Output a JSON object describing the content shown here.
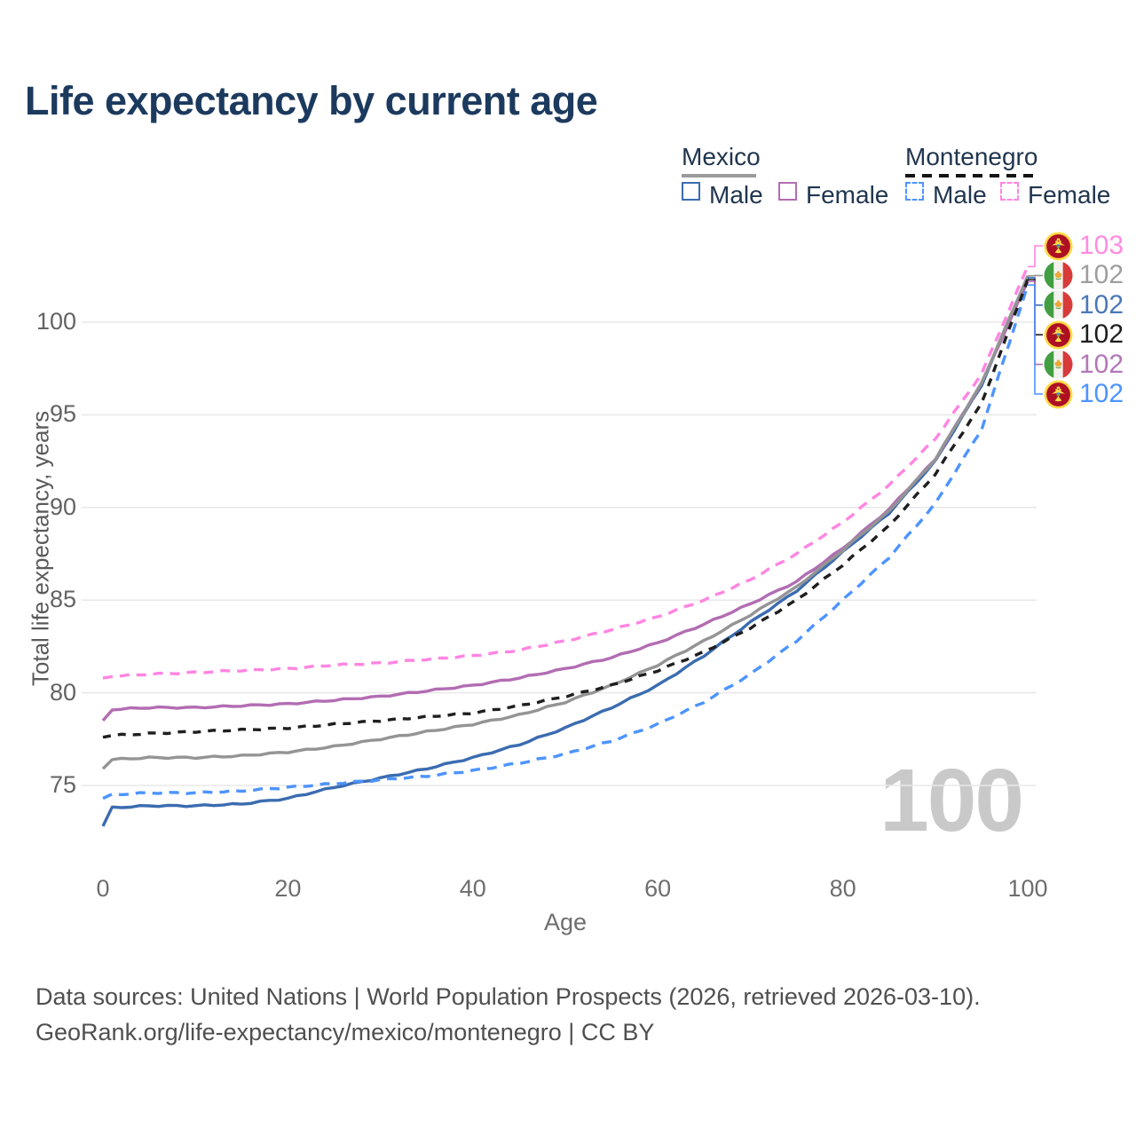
{
  "title": "Life expectancy by current age",
  "legend": {
    "groups": [
      {
        "country": "Mexico",
        "line_style": "solid",
        "underline_color": "#9b9b9b",
        "items": [
          {
            "label": "Male",
            "color": "#3b6cb0",
            "dashed": false
          },
          {
            "label": "Female",
            "color": "#b26db2",
            "dashed": false
          }
        ]
      },
      {
        "country": "Montenegro",
        "line_style": "dashed",
        "underline_color": "#141414",
        "items": [
          {
            "label": "Male",
            "color": "#4d94ff",
            "dashed": true
          },
          {
            "label": "Female",
            "color": "#ff85e2",
            "dashed": true
          }
        ]
      }
    ]
  },
  "chart_data": {
    "type": "line",
    "title": "Life expectancy by current age",
    "xlabel": "Age",
    "ylabel": "Total life expectancy, years",
    "xticks": [
      0,
      20,
      40,
      60,
      80,
      100
    ],
    "yticks": [
      75,
      80,
      85,
      90,
      95,
      100
    ],
    "xlim": [
      0,
      100
    ],
    "ylim": [
      71.5,
      104.5
    ],
    "grid": "horizontal",
    "legend_position": "top-right",
    "x": [
      0,
      1,
      5,
      10,
      15,
      20,
      25,
      30,
      35,
      40,
      45,
      50,
      55,
      60,
      65,
      70,
      75,
      80,
      85,
      90,
      95,
      100
    ],
    "series": [
      {
        "name": "Mexico Male",
        "color": "#3b6cb0",
        "dashed": false,
        "values": [
          72.8,
          73.8,
          73.9,
          73.9,
          74.0,
          74.3,
          74.9,
          75.4,
          75.9,
          76.5,
          77.2,
          78.1,
          79.2,
          80.4,
          82.0,
          83.8,
          85.5,
          87.6,
          89.7,
          92.5,
          96.6,
          102.4
        ]
      },
      {
        "name": "Mexico Female",
        "color": "#b26db2",
        "dashed": false,
        "values": [
          78.5,
          79.1,
          79.2,
          79.2,
          79.3,
          79.4,
          79.6,
          79.8,
          80.1,
          80.4,
          80.8,
          81.3,
          81.9,
          82.7,
          83.7,
          84.8,
          86.0,
          87.8,
          89.9,
          92.6,
          96.7,
          102.2
        ]
      },
      {
        "name": "Mexico Both sexes",
        "color": "#949494",
        "dashed": false,
        "values": [
          75.9,
          76.4,
          76.5,
          76.5,
          76.6,
          76.8,
          77.1,
          77.5,
          77.9,
          78.3,
          78.8,
          79.5,
          80.4,
          81.5,
          82.8,
          84.2,
          85.7,
          87.7,
          89.8,
          92.6,
          96.7,
          102.5
        ]
      },
      {
        "name": "Montenegro Male",
        "color": "#4d94ff",
        "dashed": true,
        "values": [
          74.3,
          74.5,
          74.6,
          74.6,
          74.7,
          74.9,
          75.1,
          75.3,
          75.5,
          75.8,
          76.2,
          76.7,
          77.4,
          78.3,
          79.5,
          81.0,
          82.8,
          85.0,
          87.3,
          90.2,
          94.2,
          102.0
        ]
      },
      {
        "name": "Montenegro Female",
        "color": "#ff85e2",
        "dashed": true,
        "values": [
          80.8,
          80.9,
          81.0,
          81.1,
          81.2,
          81.3,
          81.5,
          81.6,
          81.8,
          82.0,
          82.3,
          82.8,
          83.4,
          84.1,
          85.0,
          86.1,
          87.5,
          89.2,
          91.2,
          93.7,
          97.2,
          103.0
        ]
      },
      {
        "name": "Montenegro Both sexes",
        "color": "#1f1f1f",
        "dashed": true,
        "values": [
          77.6,
          77.7,
          77.8,
          77.9,
          78.0,
          78.1,
          78.3,
          78.5,
          78.7,
          78.9,
          79.3,
          79.8,
          80.4,
          81.2,
          82.2,
          83.5,
          85.0,
          86.9,
          89.0,
          91.8,
          95.6,
          102.3
        ]
      }
    ]
  },
  "end_labels": [
    {
      "value": "103",
      "flag": "montenegro",
      "color": "#ff8ce0",
      "series": "Montenegro Female"
    },
    {
      "value": "102",
      "flag": "mexico",
      "color": "#9e9e9e",
      "series": "Mexico Both sexes"
    },
    {
      "value": "102",
      "flag": "mexico",
      "color": "#4a78b8",
      "series": "Mexico Male"
    },
    {
      "value": "102",
      "flag": "montenegro",
      "color": "#1d1d1d",
      "series": "Montenegro Both sexes"
    },
    {
      "value": "102",
      "flag": "mexico",
      "color": "#b277b8",
      "series": "Mexico Female"
    },
    {
      "value": "102",
      "flag": "montenegro",
      "color": "#4d94ff",
      "series": "Montenegro Male"
    }
  ],
  "watermark": "100",
  "footer": {
    "line1": "Data sources: United Nations | World Population Prospects (2026, retrieved 2026-03-10).",
    "line2": "GeoRank.org/life-expectancy/mexico/montenegro | CC BY"
  }
}
